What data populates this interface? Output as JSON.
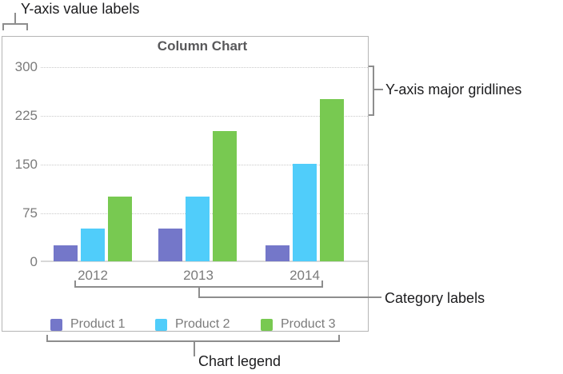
{
  "annotations": {
    "y_axis_value_labels": "Y-axis value labels",
    "y_axis_major_gridlines": "Y-axis major gridlines",
    "category_labels": "Category labels",
    "chart_legend": "Chart legend"
  },
  "chart_data": {
    "type": "bar",
    "title": "Column Chart",
    "categories": [
      "2012",
      "2013",
      "2014"
    ],
    "series": [
      {
        "name": "Product 1",
        "color": "#7477C9",
        "values": [
          25,
          50,
          25
        ]
      },
      {
        "name": "Product 2",
        "color": "#50CDFA",
        "values": [
          50,
          100,
          150
        ]
      },
      {
        "name": "Product 3",
        "color": "#78C951",
        "values": [
          100,
          200,
          250
        ]
      }
    ],
    "y_ticks": [
      0,
      75,
      150,
      225,
      300
    ],
    "ylim": [
      0,
      300
    ],
    "xlabel": "",
    "ylabel": "",
    "grid": "horizontal dotted major gridlines",
    "legend_position": "bottom"
  },
  "styles": {
    "title_color": "#58585A",
    "axis_text_color": "#7B7B7B",
    "gridline_color": "#C9C9C9",
    "baseline_color": "#D8D8D8",
    "chart_border_color": "#B5B5B5",
    "callout_line_color": "#8D8D8D",
    "annotation_text_color": "#1C1C1E"
  }
}
